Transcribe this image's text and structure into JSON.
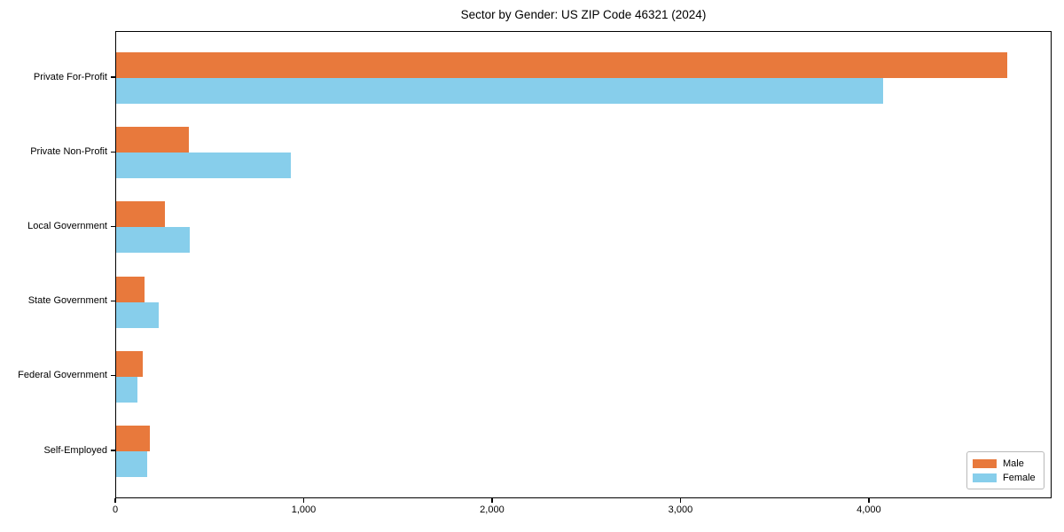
{
  "title": "Sector by Gender: US ZIP Code 46321 (2024)",
  "colors": {
    "male": "#E8793C",
    "female": "#87CEEB",
    "axis": "#000000",
    "legend_border": "#B9B9B9",
    "background": "#FFFFFF"
  },
  "chart_data": {
    "type": "bar",
    "orientation": "horizontal",
    "title": "Sector by Gender: US ZIP Code 46321 (2024)",
    "categories": [
      "Private For-Profit",
      "Private Non-Profit",
      "Local Government",
      "State Government",
      "Federal Government",
      "Self-Employed"
    ],
    "series": [
      {
        "name": "Male",
        "color": "#E8793C",
        "values": [
          4730,
          385,
          260,
          150,
          140,
          180
        ]
      },
      {
        "name": "Female",
        "color": "#87CEEB",
        "values": [
          4070,
          925,
          390,
          225,
          115,
          165
        ]
      }
    ],
    "xlabel": "",
    "ylabel": "",
    "xlim": [
      0,
      4970
    ],
    "xticks": {
      "values": [
        0,
        1000,
        2000,
        3000,
        4000
      ],
      "labels": [
        "0",
        "1,000",
        "2,000",
        "3,000",
        "4,000"
      ]
    },
    "grid": false,
    "legend": {
      "position": "lower right",
      "entries": [
        "Male",
        "Female"
      ]
    }
  }
}
